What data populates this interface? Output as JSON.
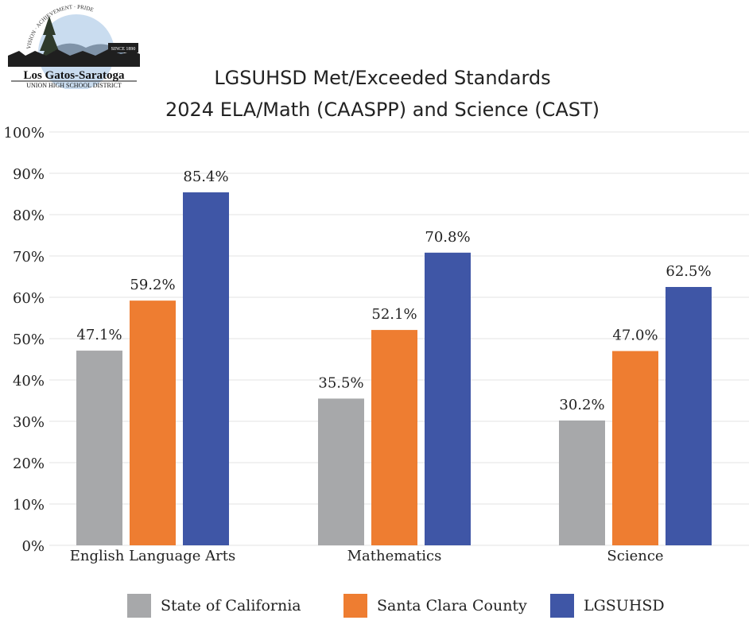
{
  "logo": {
    "top_text": "VISION · ACHIEVEMENT · PRIDE",
    "since": "SINCE 1890",
    "name": "Los Gatos-Saratoga",
    "subtitle": "UNION HIGH SCHOOL DISTRICT"
  },
  "colors": {
    "state": "#a7a8aa",
    "county": "#ee7d31",
    "district": "#3f56a6",
    "grid": "#e3e3e3"
  },
  "chart_data": {
    "type": "bar",
    "title": "LGSUHSD Met/Exceeded Standards",
    "subtitle": "2024 ELA/Math (CAASPP) and Science (CAST)",
    "categories": [
      "English Language Arts",
      "Mathematics",
      "Science"
    ],
    "series": [
      {
        "name": "State of California",
        "values": [
          47.1,
          35.5,
          30.2
        ],
        "labels": [
          "47.1%",
          "35.5%",
          "30.2%"
        ]
      },
      {
        "name": "Santa Clara County",
        "values": [
          59.2,
          52.1,
          47.0
        ],
        "labels": [
          "59.2%",
          "52.1%",
          "47.0%"
        ]
      },
      {
        "name": "LGSUHSD",
        "values": [
          85.4,
          70.8,
          62.5
        ],
        "labels": [
          "85.4%",
          "70.8%",
          "62.5%"
        ]
      }
    ],
    "ylim": [
      0,
      100
    ],
    "yticks": [
      "0%",
      "10%",
      "20%",
      "30%",
      "40%",
      "50%",
      "60%",
      "70%",
      "80%",
      "90%",
      "100%"
    ],
    "legend_position": "bottom",
    "grid": true
  }
}
